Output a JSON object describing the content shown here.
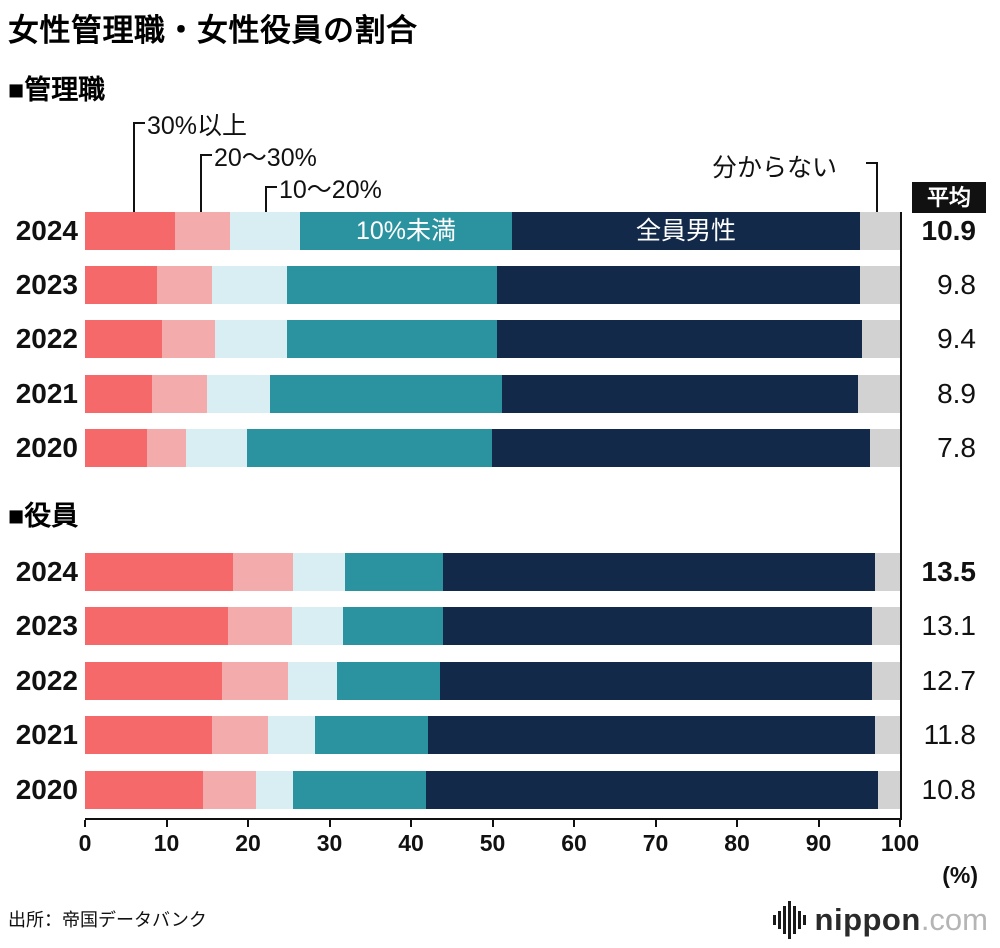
{
  "title": "女性管理職・女性役員の割合",
  "labels": {
    "average": "平均"
  },
  "axis": {
    "ticks": [
      0,
      10,
      20,
      30,
      40,
      50,
      60,
      70,
      80,
      90,
      100
    ],
    "unit_label": "(%)",
    "xlim": [
      0,
      100
    ]
  },
  "source": "出所：帝国データバンク",
  "logo": {
    "name": "nippon",
    "suffix": ".com"
  },
  "chart_data": [
    {
      "type": "bar",
      "orientation": "horizontal",
      "stacked": true,
      "section_title": "■管理職",
      "unit": "%",
      "segment_labels": [
        "30%以上",
        "20〜30%",
        "10〜20%",
        "10%未満",
        "全員男性",
        "分からない"
      ],
      "segment_colors": [
        "#f5696b",
        "#f4abac",
        "#d9eef2",
        "#2b93a0",
        "#12294a",
        "#d2d2d2"
      ],
      "categories": [
        "2024",
        "2023",
        "2022",
        "2021",
        "2020"
      ],
      "average_header": "平均",
      "xlim": [
        0,
        100
      ],
      "series": [
        {
          "year": "2024",
          "values": [
            11.0,
            6.8,
            8.6,
            26.0,
            42.7,
            4.9
          ],
          "average": "10.9",
          "average_bold": true
        },
        {
          "year": "2023",
          "values": [
            8.8,
            6.8,
            9.2,
            25.8,
            44.5,
            4.9
          ],
          "average": "9.8",
          "average_bold": false
        },
        {
          "year": "2022",
          "values": [
            9.4,
            6.6,
            8.8,
            25.8,
            44.7,
            4.7
          ],
          "average": "9.4",
          "average_bold": false
        },
        {
          "year": "2021",
          "values": [
            8.2,
            6.8,
            7.7,
            28.5,
            43.6,
            5.2
          ],
          "average": "8.9",
          "average_bold": false
        },
        {
          "year": "2020",
          "values": [
            7.6,
            4.8,
            7.5,
            30.0,
            46.4,
            3.7
          ],
          "average": "7.8",
          "average_bold": false
        }
      ]
    },
    {
      "type": "bar",
      "orientation": "horizontal",
      "stacked": true,
      "section_title": "■役員",
      "unit": "%",
      "segment_labels": [
        "30%以上",
        "20〜30%",
        "10〜20%",
        "10%未満",
        "全員男性",
        "分からない"
      ],
      "segment_colors": [
        "#f5696b",
        "#f4abac",
        "#d9eef2",
        "#2b93a0",
        "#12294a",
        "#d2d2d2"
      ],
      "categories": [
        "2024",
        "2023",
        "2022",
        "2021",
        "2020"
      ],
      "xlim": [
        0,
        100
      ],
      "series": [
        {
          "year": "2024",
          "values": [
            18.2,
            7.3,
            6.4,
            12.0,
            53.0,
            3.1
          ],
          "average": "13.5",
          "average_bold": true
        },
        {
          "year": "2023",
          "values": [
            17.5,
            7.9,
            6.3,
            12.2,
            52.7,
            3.4
          ],
          "average": "13.1",
          "average_bold": false
        },
        {
          "year": "2022",
          "values": [
            16.8,
            8.1,
            6.0,
            12.7,
            53.0,
            3.4
          ],
          "average": "12.7",
          "average_bold": false
        },
        {
          "year": "2021",
          "values": [
            15.6,
            6.9,
            5.7,
            13.9,
            54.8,
            3.1
          ],
          "average": "11.8",
          "average_bold": false
        },
        {
          "year": "2020",
          "values": [
            14.5,
            6.5,
            4.5,
            16.3,
            55.5,
            2.7
          ],
          "average": "10.8",
          "average_bold": false
        }
      ]
    }
  ]
}
